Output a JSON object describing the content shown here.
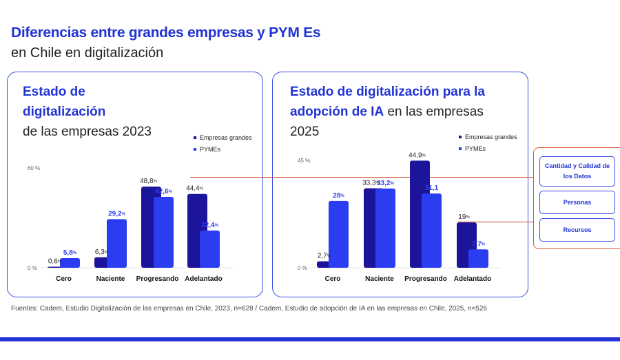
{
  "header": {
    "title": "Diferencias entre grandes empresas y PYM Es",
    "subtitle": "en Chile en digitalización"
  },
  "colors": {
    "grandes": "#1c149a",
    "pymes": "#2a3df0",
    "connector": "#d0442b"
  },
  "chart_data": [
    {
      "type": "bar",
      "title": {
        "line1": "Estado de",
        "line2": "digitalización",
        "line3": "de las empresas 2023"
      },
      "categories": [
        "Cero",
        "Naciente",
        "Progresando",
        "Adelantado"
      ],
      "series": [
        {
          "name": "Empresas grandes",
          "values": [
            0.6,
            6.3,
            48.8,
            44.4
          ],
          "labels": [
            "0,6",
            "6,3",
            "48,8",
            "44,4"
          ]
        },
        {
          "name": "PYMEs",
          "values": [
            5.8,
            29.2,
            42.6,
            22.4
          ],
          "labels": [
            "5,8",
            "29,2",
            "42,6",
            "22,4"
          ]
        }
      ],
      "y_ticks": [
        {
          "value": 0,
          "label": "0"
        },
        {
          "value": 60,
          "label": "60"
        }
      ],
      "ylim": [
        0,
        60
      ],
      "unit": "%",
      "legend_position": "top-right"
    },
    {
      "type": "bar",
      "title": {
        "bold": "Estado de digitalización para la adopción de IA",
        "normal": " en las empresas 2025"
      },
      "categories": [
        "Cero",
        "Naciente",
        "Progresando",
        "Adelantado"
      ],
      "series": [
        {
          "name": "Empresas grandes",
          "values": [
            2.7,
            33.3,
            44.9,
            19
          ],
          "labels": [
            "2,7",
            "33,3",
            "44,9",
            "19"
          ]
        },
        {
          "name": "PYMEs",
          "values": [
            28,
            33.2,
            31.1,
            7.7
          ],
          "labels": [
            "28",
            "33,2",
            "31,1",
            "7,7"
          ]
        }
      ],
      "y_ticks": [
        {
          "value": 0,
          "label": "0"
        },
        {
          "value": 45,
          "label": "45"
        }
      ],
      "ylim": [
        0,
        45
      ],
      "unit": "%",
      "unit_hidden_on": [
        "PYMEs-2"
      ],
      "legend_position": "top-right"
    }
  ],
  "side_panel": {
    "items": [
      "Cantidad y Calidad de los Datos",
      "Personas",
      "Recursos"
    ]
  },
  "footer": {
    "sources": "Fuentes: Cadem, Estudio Digitalización de las empresas en Chile, 2023, n=628 / Cadem, Estudio de adopción de IA en las empresas en Chile, 2025, n=526"
  }
}
